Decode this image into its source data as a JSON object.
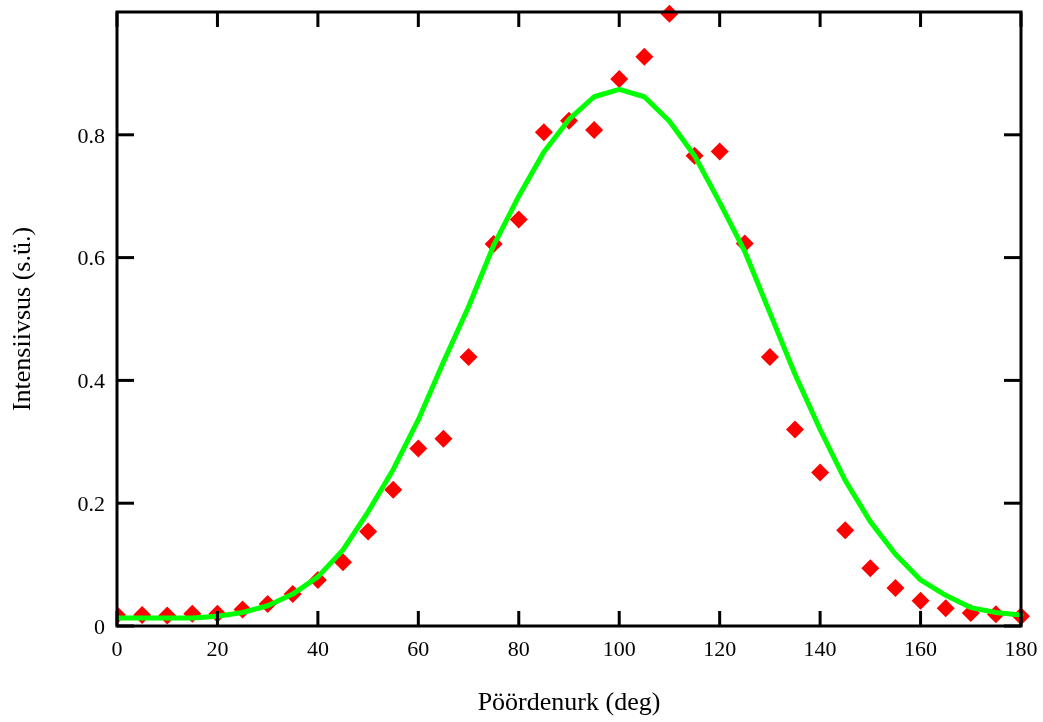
{
  "chart_data": {
    "type": "scatter",
    "xlabel": "Pöördenurk (deg)",
    "ylabel": "Intensiivsus (s.ü.)",
    "x": [
      0,
      5,
      10,
      15,
      20,
      25,
      30,
      35,
      40,
      45,
      50,
      55,
      60,
      65,
      70,
      75,
      80,
      85,
      90,
      95,
      100,
      105,
      110,
      115,
      120,
      125,
      130,
      135,
      140,
      145,
      150,
      155,
      160,
      165,
      170,
      175,
      180
    ],
    "series": [
      {
        "color": "#ff0000",
        "marker": "diamond",
        "values": [
          0.018,
          0.018,
          0.017,
          0.02,
          0.02,
          0.027,
          0.036,
          0.052,
          0.075,
          0.104,
          0.154,
          0.222,
          0.289,
          0.305,
          0.438,
          0.622,
          0.662,
          0.804,
          0.823,
          0.808,
          0.891,
          0.927,
          0.997,
          0.766,
          0.773,
          0.623,
          0.438,
          0.32,
          0.25,
          0.156,
          0.094,
          0.062,
          0.041,
          0.029,
          0.021,
          0.019,
          0.016
        ]
      },
      {
        "type": "line",
        "color": "#00ff00",
        "marker": "none",
        "line_style": "solid",
        "values": [
          0.013,
          0.013,
          0.013,
          0.013,
          0.016,
          0.022,
          0.033,
          0.052,
          0.08,
          0.124,
          0.186,
          0.255,
          0.336,
          0.43,
          0.52,
          0.62,
          0.7,
          0.772,
          0.825,
          0.862,
          0.874,
          0.862,
          0.822,
          0.766,
          0.69,
          0.61,
          0.51,
          0.41,
          0.32,
          0.237,
          0.17,
          0.117,
          0.075,
          0.05,
          0.03,
          0.022,
          0.018
        ]
      }
    ],
    "xlim": [
      0,
      180
    ],
    "xticks": [
      0,
      20,
      40,
      60,
      80,
      100,
      120,
      140,
      160,
      180
    ],
    "ylim": [
      0,
      1
    ],
    "yticks": [
      0,
      0.2,
      0.4,
      0.6,
      0.8
    ],
    "grid": false
  }
}
